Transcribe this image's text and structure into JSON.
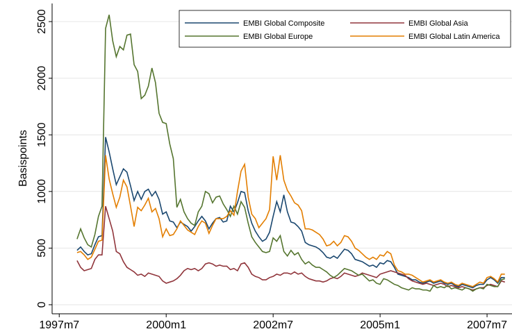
{
  "chart_data": {
    "type": "line",
    "y_label": "Basispoints",
    "xlim": [
      448,
      577
    ],
    "ylim": [
      -80,
      2660
    ],
    "xticks": [
      {
        "value": 450,
        "label": "1997m7"
      },
      {
        "value": 480,
        "label": "2000m1"
      },
      {
        "value": 510,
        "label": "2002m7"
      },
      {
        "value": 540,
        "label": "2005m1"
      },
      {
        "value": 570,
        "label": "2007m7"
      }
    ],
    "yticks": [
      0,
      500,
      1000,
      1500,
      2000,
      2500
    ],
    "grid": true,
    "legend_position": "top-right",
    "x": [
      455,
      456,
      457,
      458,
      459,
      460,
      461,
      462,
      463,
      464,
      465,
      466,
      467,
      468,
      469,
      470,
      471,
      472,
      473,
      474,
      475,
      476,
      477,
      478,
      479,
      480,
      481,
      482,
      483,
      484,
      485,
      486,
      487,
      488,
      489,
      490,
      491,
      492,
      493,
      494,
      495,
      496,
      497,
      498,
      499,
      500,
      501,
      502,
      503,
      504,
      505,
      506,
      507,
      508,
      509,
      510,
      511,
      512,
      513,
      514,
      515,
      516,
      517,
      518,
      519,
      520,
      521,
      522,
      523,
      524,
      525,
      526,
      527,
      528,
      529,
      530,
      531,
      532,
      533,
      534,
      535,
      536,
      537,
      538,
      539,
      540,
      541,
      542,
      543,
      544,
      545,
      546,
      547,
      548,
      549,
      550,
      551,
      552,
      553,
      554,
      555,
      556,
      557,
      558,
      559,
      560,
      561,
      562,
      563,
      564,
      565,
      566,
      567,
      568,
      569,
      570,
      571,
      572,
      573,
      574,
      575
    ],
    "series": [
      {
        "name": "EMBI Global Composite",
        "color": "#1a476f",
        "values": [
          480,
          510,
          470,
          440,
          450,
          530,
          600,
          610,
          1480,
          1350,
          1200,
          1060,
          1130,
          1200,
          1170,
          1050,
          920,
          1000,
          930,
          1000,
          1020,
          960,
          1000,
          930,
          800,
          820,
          740,
          730,
          680,
          730,
          710,
          690,
          650,
          690,
          740,
          780,
          740,
          670,
          720,
          760,
          770,
          730,
          740,
          870,
          820,
          900,
          1000,
          990,
          830,
          720,
          650,
          600,
          560,
          580,
          640,
          780,
          910,
          820,
          970,
          820,
          730,
          720,
          690,
          650,
          550,
          530,
          520,
          510,
          490,
          460,
          420,
          410,
          430,
          410,
          450,
          490,
          480,
          450,
          400,
          390,
          380,
          360,
          340,
          350,
          330,
          370,
          360,
          390,
          380,
          330,
          270,
          260,
          250,
          240,
          220,
          220,
          200,
          190,
          200,
          210,
          190,
          200,
          210,
          190,
          180,
          190,
          170,
          160,
          180,
          170,
          160,
          150,
          170,
          180,
          180,
          220,
          240,
          220,
          190,
          240,
          240
        ]
      },
      {
        "name": "EMBI Global Asia",
        "color": "#90353b",
        "values": [
          390,
          330,
          300,
          310,
          320,
          400,
          440,
          440,
          870,
          760,
          650,
          470,
          450,
          380,
          330,
          310,
          290,
          260,
          270,
          250,
          280,
          270,
          260,
          250,
          210,
          190,
          200,
          210,
          230,
          260,
          300,
          320,
          310,
          320,
          300,
          320,
          360,
          370,
          360,
          340,
          350,
          340,
          340,
          310,
          320,
          300,
          360,
          370,
          330,
          270,
          250,
          240,
          220,
          220,
          240,
          250,
          270,
          260,
          280,
          280,
          270,
          290,
          270,
          280,
          250,
          230,
          220,
          210,
          210,
          200,
          210,
          230,
          240,
          230,
          250,
          280,
          270,
          260,
          250,
          260,
          280,
          270,
          260,
          250,
          240,
          270,
          280,
          290,
          300,
          290,
          280,
          270,
          260,
          230,
          210,
          200,
          190,
          180,
          190,
          180,
          170,
          180,
          190,
          180,
          160,
          170,
          160,
          150,
          160,
          150,
          140,
          130,
          140,
          150,
          150,
          170,
          180,
          170,
          160,
          210,
          200
        ]
      },
      {
        "name": "EMBI Global Europe",
        "color": "#55752f",
        "values": [
          580,
          670,
          590,
          530,
          510,
          620,
          780,
          870,
          2440,
          2560,
          2330,
          2190,
          2280,
          2250,
          2380,
          2390,
          2120,
          2060,
          1820,
          1850,
          1930,
          2090,
          1960,
          1690,
          1610,
          1600,
          1420,
          1290,
          860,
          930,
          820,
          760,
          720,
          700,
          820,
          870,
          1000,
          980,
          900,
          950,
          960,
          890,
          840,
          780,
          870,
          800,
          910,
          860,
          720,
          600,
          550,
          510,
          470,
          460,
          470,
          590,
          560,
          610,
          470,
          430,
          480,
          440,
          460,
          400,
          360,
          380,
          350,
          330,
          330,
          310,
          290,
          260,
          240,
          260,
          290,
          320,
          310,
          300,
          280,
          260,
          270,
          240,
          210,
          220,
          190,
          180,
          230,
          220,
          200,
          180,
          170,
          150,
          140,
          130,
          150,
          140,
          140,
          130,
          130,
          120,
          170,
          150,
          160,
          150,
          170,
          140,
          150,
          140,
          130,
          150,
          140,
          120,
          140,
          150,
          140,
          180,
          170,
          160,
          160,
          220,
          230
        ]
      },
      {
        "name": "EMBI Global Latin America",
        "color": "#e37e00",
        "values": [
          460,
          470,
          440,
          400,
          420,
          490,
          560,
          570,
          1320,
          1110,
          980,
          860,
          950,
          1100,
          1040,
          870,
          690,
          860,
          830,
          880,
          940,
          820,
          850,
          760,
          600,
          670,
          610,
          620,
          670,
          740,
          700,
          660,
          640,
          620,
          690,
          740,
          720,
          630,
          700,
          760,
          760,
          760,
          780,
          830,
          790,
          1000,
          1180,
          1240,
          950,
          800,
          760,
          680,
          720,
          760,
          840,
          1310,
          1100,
          1320,
          1100,
          1010,
          960,
          900,
          880,
          830,
          670,
          670,
          660,
          640,
          620,
          580,
          520,
          530,
          560,
          520,
          550,
          610,
          600,
          560,
          500,
          480,
          450,
          420,
          400,
          420,
          400,
          440,
          430,
          470,
          450,
          350,
          300,
          290,
          270,
          270,
          260,
          240,
          220,
          200,
          210,
          220,
          200,
          210,
          220,
          200,
          190,
          200,
          180,
          170,
          190,
          180,
          170,
          160,
          180,
          200,
          190,
          240,
          250,
          230,
          200,
          270,
          270
        ]
      }
    ]
  }
}
